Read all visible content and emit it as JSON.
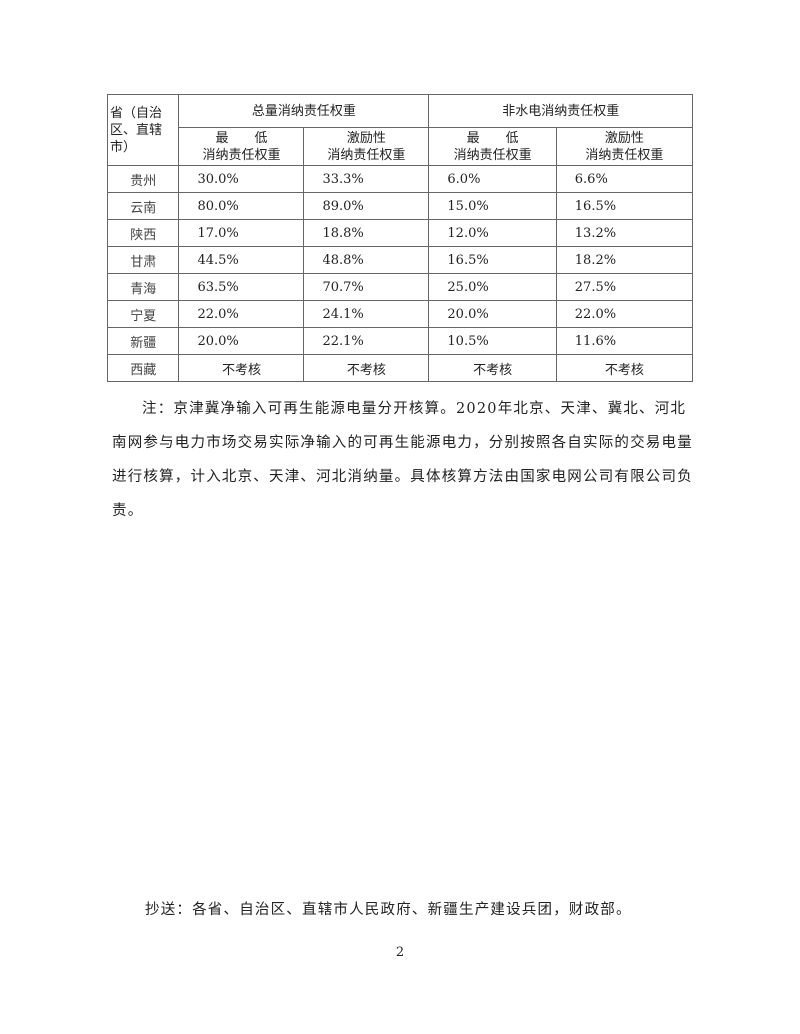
{
  "table": {
    "corner_header": "省（自治区、直辖市）",
    "group_headers": [
      "总量消纳责任权重",
      "非水电消纳责任权重"
    ],
    "sub_headers": [
      {
        "line1": "最　　低",
        "line2": "消纳责任权重"
      },
      {
        "line1": "激励性",
        "line2": "消纳责任权重"
      },
      {
        "line1": "最　　低",
        "line2": "消纳责任权重"
      },
      {
        "line1": "激励性",
        "line2": "消纳责任权重"
      }
    ],
    "rows": [
      {
        "province": "贵州",
        "values": [
          "30.0%",
          "33.3%",
          "6.0%",
          "6.6%"
        ]
      },
      {
        "province": "云南",
        "values": [
          "80.0%",
          "89.0%",
          "15.0%",
          "16.5%"
        ]
      },
      {
        "province": "陕西",
        "values": [
          "17.0%",
          "18.8%",
          "12.0%",
          "13.2%"
        ]
      },
      {
        "province": "甘肃",
        "values": [
          "44.5%",
          "48.8%",
          "16.5%",
          "18.2%"
        ]
      },
      {
        "province": "青海",
        "values": [
          "63.5%",
          "70.7%",
          "25.0%",
          "27.5%"
        ]
      },
      {
        "province": "宁夏",
        "values": [
          "22.0%",
          "24.1%",
          "20.0%",
          "22.0%"
        ]
      },
      {
        "province": "新疆",
        "values": [
          "20.0%",
          "22.1%",
          "10.5%",
          "11.6%"
        ]
      },
      {
        "province": "西藏",
        "values": [
          "不考核",
          "不考核",
          "不考核",
          "不考核"
        ]
      }
    ]
  },
  "note": "注：京津冀净输入可再生能源电量分开核算。2020年北京、天津、冀北、河北南网参与电力市场交易实际净输入的可再生能源电力，分别按照各自实际的交易电量进行核算，计入北京、天津、河北消纳量。具体核算方法由国家电网公司有限公司负责。",
  "cc": "抄送：各省、自治区、直辖市人民政府、新疆生产建设兵团，财政部。",
  "page_number": "2"
}
